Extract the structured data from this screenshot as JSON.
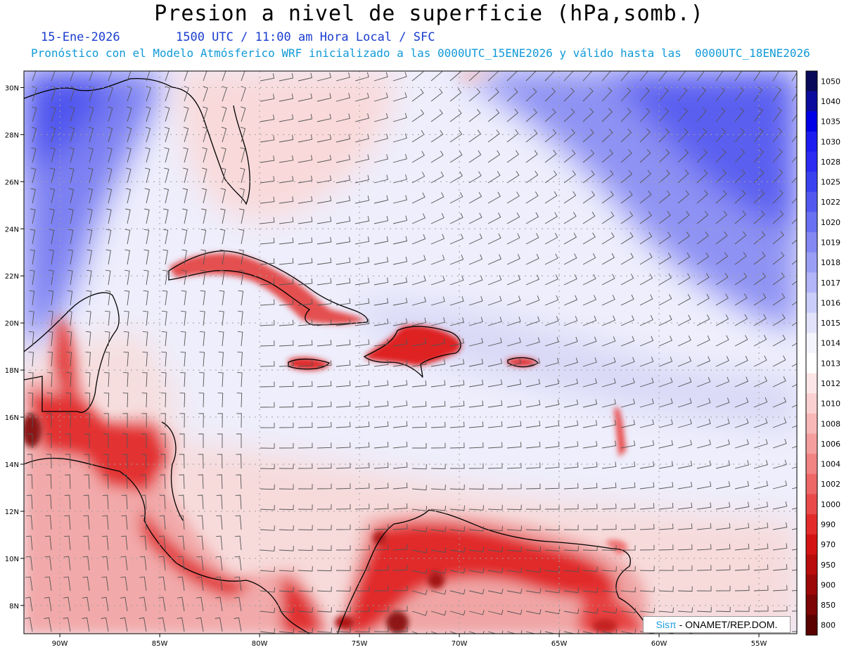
{
  "header": {
    "title": "Presion a nivel de superficie (hPa,somb.)",
    "date": "15-Ene-2026",
    "time": "1500 UTC / 11:00 am Hora Local / SFC",
    "forecast": "Pronóstico con el Modelo Atmósferico WRF inicializado a las 0000UTC_15ENE2026 y válido hasta las  0000UTC_18ENE2026"
  },
  "map": {
    "lat_labels": [
      "30N",
      "28N",
      "26N",
      "24N",
      "22N",
      "20N",
      "18N",
      "16N",
      "14N",
      "12N",
      "10N",
      "8N"
    ],
    "lon_labels": [
      "90W",
      "85W",
      "80W",
      "75W",
      "70W",
      "65W",
      "60W",
      "55W"
    ],
    "lat_range": [
      6.8,
      30.7
    ],
    "lon_range": [
      -91.8,
      -53.1
    ],
    "colors": {
      "high": "#5a5ef5",
      "mid_high": "#a9acf5",
      "neutral": "#f2f0fb",
      "low": "#f8d2d2",
      "very_low": "#e83535",
      "extreme_low": "#8b1010"
    }
  },
  "legend": {
    "levels": [
      "1050",
      "1040",
      "1035",
      "1030",
      "1028",
      "1025",
      "1022",
      "1020",
      "1019",
      "1018",
      "1017",
      "1016",
      "1015",
      "1014",
      "1013",
      "1012",
      "1010",
      "1008",
      "1006",
      "1004",
      "1002",
      "1000",
      "990",
      "970",
      "950",
      "900",
      "850",
      "800"
    ],
    "colors": [
      "#0a0a5a",
      "#0b0b9e",
      "#0000e6",
      "#1c1cf0",
      "#2b2bf2",
      "#3a42f0",
      "#5359f0",
      "#6a70f2",
      "#8388f3",
      "#9a9ff5",
      "#b2b5f7",
      "#cacdf9",
      "#e2e3fb",
      "#f4f4fd",
      "#ffffff",
      "#fde6e6",
      "#fbd0d0",
      "#f8b8b8",
      "#f59e9e",
      "#f28383",
      "#ee6767",
      "#e94a4a",
      "#e32b2b",
      "#d41414",
      "#b90c0c",
      "#9c0808",
      "#7c0505",
      "#5a0202"
    ]
  },
  "credit": {
    "brand": "Sisπ",
    "text": " - ONAMET/REP.DOM."
  }
}
